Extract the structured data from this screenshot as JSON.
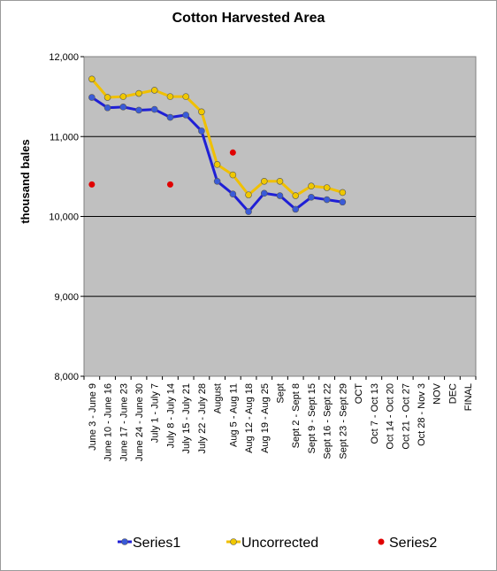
{
  "chart_data": {
    "type": "line",
    "title": "Cotton Harvested Area",
    "xlabel": "",
    "ylabel": "thousand bales",
    "ylim": [
      8000,
      12000
    ],
    "yticks": [
      "8,000",
      "9,000",
      "10,000",
      "11,000",
      "12,000"
    ],
    "ytick_values": [
      8000,
      9000,
      10000,
      11000,
      12000
    ],
    "grid": true,
    "legend_position": "bottom",
    "categories": [
      "June 3 - June 9",
      "June 10 - June 16",
      "June 17 - June 23",
      "June 24 - June 30",
      "July 1 - July 7",
      "July 8 - July 14",
      "July 15 - July 21",
      "July 22 - July 28",
      "August",
      "Aug 5 - Aug 11",
      "Aug 12 - Aug 18",
      "Aug 19 - Aug 25",
      "Sept",
      "Sept 2 - Sept 8",
      "Sept 9 - Sept 15",
      "Sept 16 - Sept 22",
      "Sept 23 - Sept 29",
      "OCT",
      "Oct 7 - Oct 13",
      "Oct 14 - Oct 20",
      "Oct 21 - Oct 27",
      "Oct 28 - Nov 3",
      "NOV",
      "DEC",
      "FINAL"
    ],
    "series": [
      {
        "name": "Series1",
        "color": "#1f1fd6",
        "marker_color": "#3a5bd8",
        "style": "line-marker",
        "values": [
          11490,
          11360,
          11370,
          11330,
          11340,
          11240,
          11270,
          11070,
          10440,
          10280,
          10060,
          10290,
          10260,
          10090,
          10240,
          10210,
          10180,
          null,
          null,
          null,
          null,
          null,
          null,
          null,
          null
        ]
      },
      {
        "name": "Uncorrected",
        "color": "#f0c000",
        "marker_color": "#f0c800",
        "style": "line-marker",
        "values": [
          11720,
          11490,
          11500,
          11540,
          11580,
          11500,
          11500,
          11310,
          10650,
          10520,
          10270,
          10440,
          10440,
          10260,
          10380,
          10360,
          10300,
          null,
          null,
          null,
          null,
          null,
          null,
          null,
          null
        ]
      },
      {
        "name": "Series2",
        "color": "#e00000",
        "marker_color": "#e00000",
        "style": "marker",
        "values": [
          10400,
          null,
          null,
          null,
          null,
          10400,
          null,
          null,
          null,
          10800,
          null,
          null,
          null,
          null,
          null,
          null,
          null,
          null,
          null,
          null,
          null,
          null,
          null,
          null,
          null
        ]
      }
    ]
  }
}
